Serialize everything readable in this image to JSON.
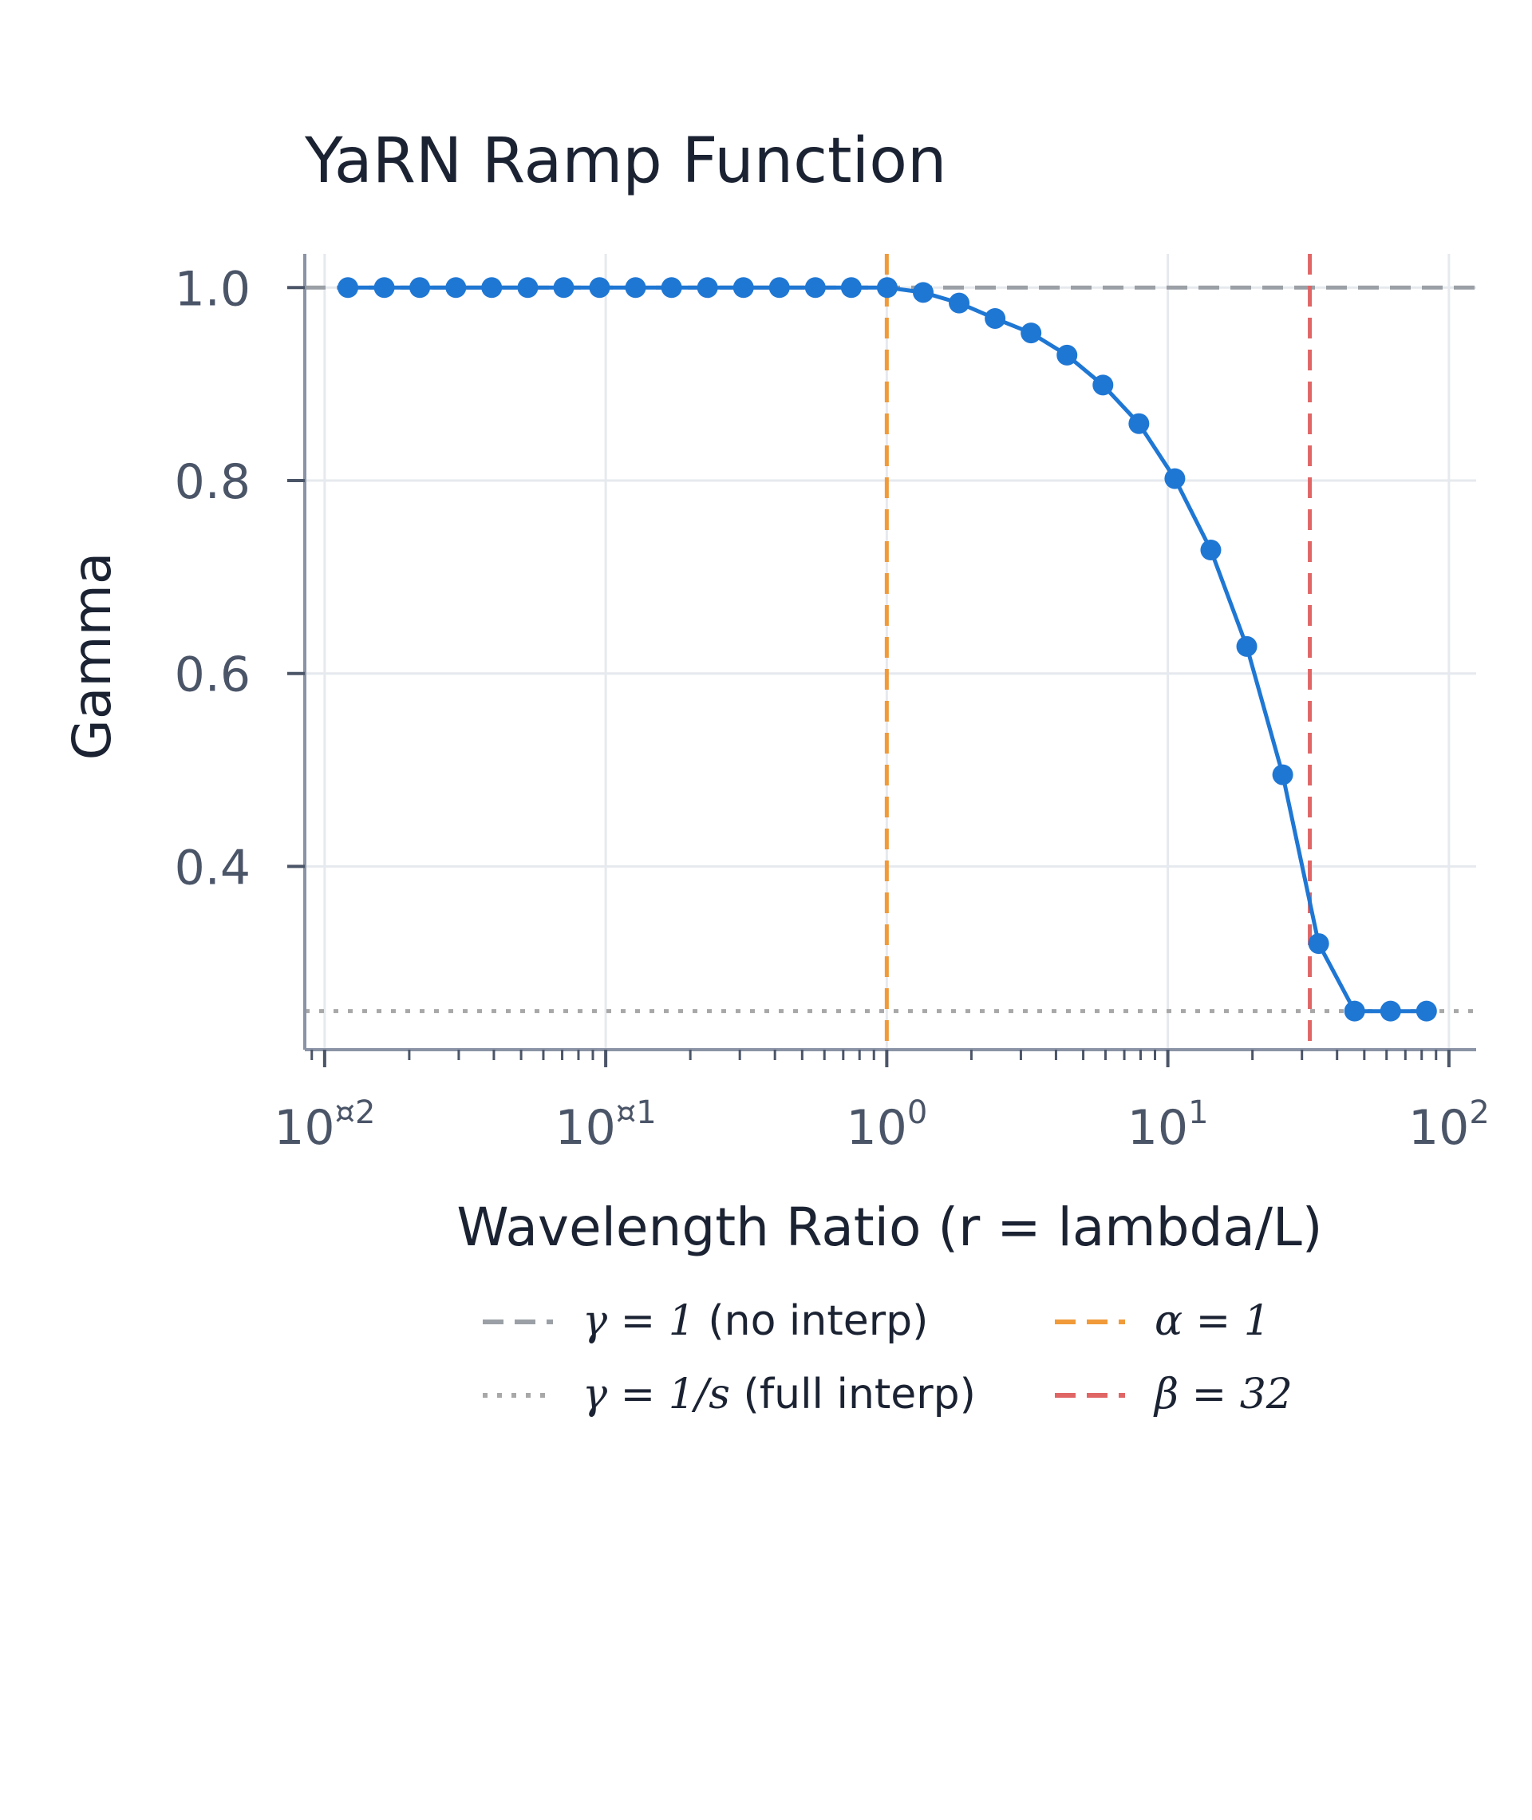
{
  "chart_data": {
    "type": "line",
    "title": "YaRN Ramp Function",
    "xlabel": "Wavelength Ratio (r = lambda/L)",
    "ylabel": "Gamma",
    "xscale": "log",
    "xlim": [
      0.0085,
      125
    ],
    "ylim": [
      0.21,
      1.035
    ],
    "x_ticks": [
      {
        "value": 0.01,
        "base": "10",
        "exp": "¤2"
      },
      {
        "value": 0.1,
        "base": "10",
        "exp": "¤1"
      },
      {
        "value": 1,
        "base": "10",
        "exp": "0"
      },
      {
        "value": 10,
        "base": "10",
        "exp": "1"
      },
      {
        "value": 100,
        "base": "10",
        "exp": "2"
      }
    ],
    "y_ticks": [
      {
        "value": 0.4,
        "label": "0.4"
      },
      {
        "value": 0.6,
        "label": "0.6"
      },
      {
        "value": 0.8,
        "label": "0.8"
      },
      {
        "value": 1.0,
        "label": "1.0"
      }
    ],
    "grid": true,
    "legend_position": "bottom",
    "series": [
      {
        "color": "#1f77d4",
        "x": [
          0.0121,
          0.0163,
          0.0218,
          0.0293,
          0.0393,
          0.0528,
          0.0709,
          0.0951,
          0.1277,
          0.1715,
          0.2302,
          0.3091,
          0.4149,
          0.557,
          0.7478,
          1.0039,
          1.3477,
          1.8093,
          2.429,
          3.2609,
          4.3777,
          5.877,
          7.8899,
          10.592,
          14.22,
          19.09,
          25.628,
          34.405,
          46.189,
          62.008,
          83.246
        ],
        "y": [
          1.0,
          1.0,
          1.0,
          1.0,
          1.0,
          1.0,
          1.0,
          1.0,
          1.0,
          1.0,
          1.0,
          1.0,
          1.0,
          1.0,
          1.0,
          1.0,
          0.995,
          0.984,
          0.968,
          0.953,
          0.93,
          0.899,
          0.859,
          0.802,
          0.728,
          0.628,
          0.495,
          0.32,
          0.25,
          0.25,
          0.25
        ]
      }
    ],
    "reference_lines": [
      {
        "orientation": "horizontal",
        "value": 1.0,
        "style": "dashed",
        "color": "#9aa0a6",
        "legend": {
          "math": "γ = 1",
          "text": " (no interp)"
        }
      },
      {
        "orientation": "horizontal",
        "value": 0.25,
        "style": "dotted",
        "color": "#a8a8a8",
        "legend": {
          "math": "γ = 1/s",
          "text": " (full interp)"
        }
      },
      {
        "orientation": "vertical",
        "value": 1,
        "style": "dashed",
        "color": "#f09a3a",
        "legend": {
          "math": "α = 1",
          "text": ""
        }
      },
      {
        "orientation": "vertical",
        "value": 32,
        "style": "dashed",
        "color": "#e06666",
        "legend": {
          "math": "β = 32",
          "text": ""
        }
      }
    ]
  }
}
